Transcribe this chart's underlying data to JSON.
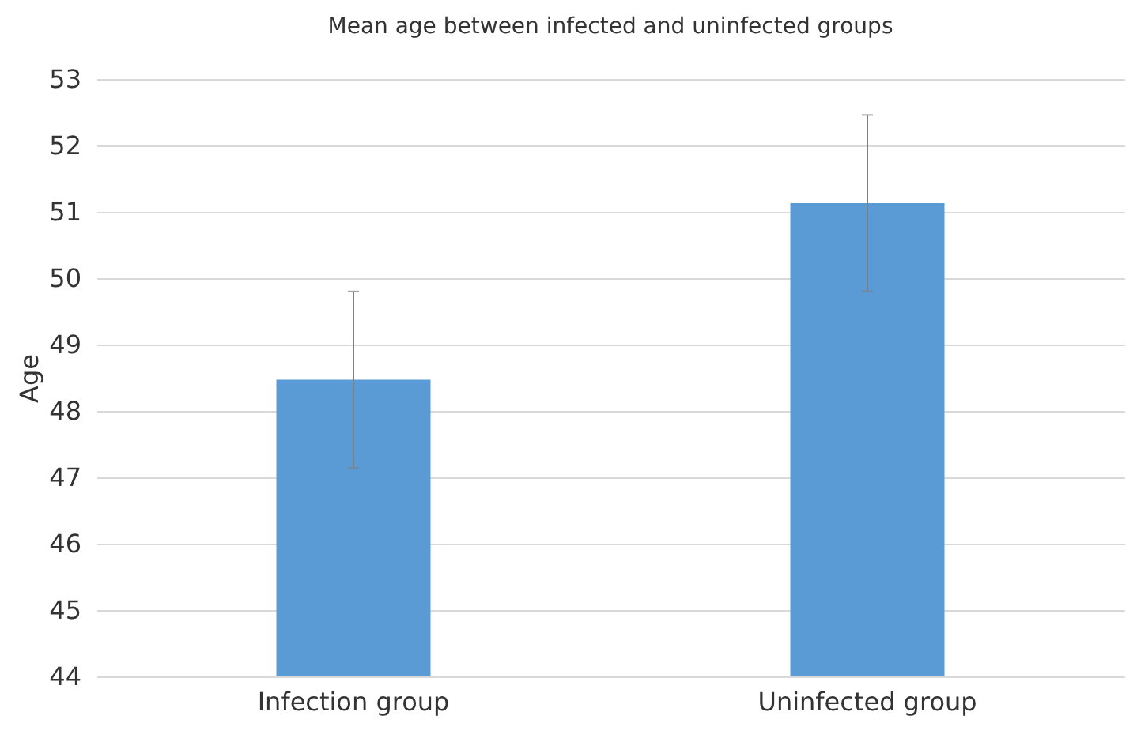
{
  "chart_data": {
    "type": "bar",
    "title": "Mean age between infected and uninfected groups",
    "ylabel": "Age",
    "categories": [
      "Infection group",
      "Uninfected group"
    ],
    "values": [
      48.47,
      51.13
    ],
    "errors": [
      1.33,
      1.33
    ],
    "color": "#5b9bd5",
    "ylim": [
      44,
      53
    ],
    "yticks": [
      44,
      45,
      46,
      47,
      48,
      49,
      50,
      51,
      52,
      53
    ],
    "grid": "y"
  }
}
